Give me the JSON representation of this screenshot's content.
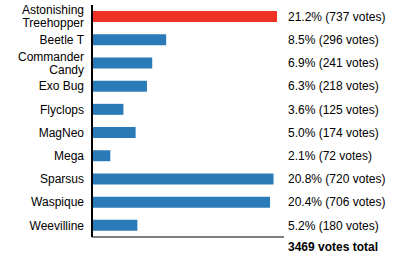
{
  "chart_data": {
    "type": "bar",
    "orientation": "horizontal",
    "categories": [
      "Astonishing Treehopper",
      "Beetle T",
      "Commander Candy",
      "Exo Bug",
      "Flyclops",
      "MagNeo",
      "Mega",
      "Sparsus",
      "Waspique",
      "Weevilline"
    ],
    "values": [
      21.2,
      8.5,
      6.9,
      6.3,
      3.6,
      5.0,
      2.1,
      20.8,
      20.4,
      5.2
    ],
    "value_labels": [
      "21.2% (737 votes)",
      "8.5% (296 votes)",
      "6.9% (241 votes)",
      "6.3% (218 votes)",
      "3.6% (125 votes)",
      "5.0% (174 votes)",
      "2.1% (72 votes)",
      "20.8% (720 votes)",
      "20.4% (706 votes)",
      "5.2% (180 votes)"
    ],
    "colors": [
      "#ee3124",
      "#2b7bb9",
      "#2b7bb9",
      "#2b7bb9",
      "#2b7bb9",
      "#2b7bb9",
      "#2b7bb9",
      "#2b7bb9",
      "#2b7bb9",
      "#2b7bb9"
    ],
    "xlim": [
      0,
      22
    ],
    "data_labels": true,
    "tick_labels": "y",
    "annotations": [
      "3469 votes total"
    ]
  }
}
